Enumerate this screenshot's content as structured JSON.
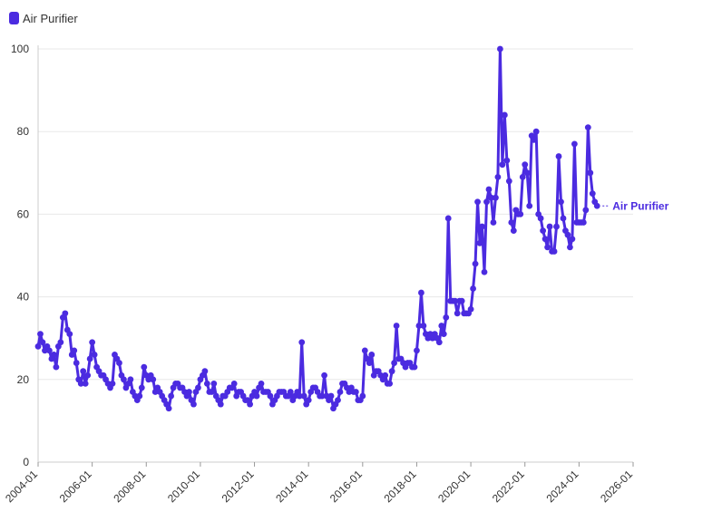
{
  "legend": {
    "label": "Air Purifier",
    "color": "#4b2be0"
  },
  "chart_data": {
    "type": "line",
    "title": "",
    "xlabel": "",
    "ylabel": "",
    "ylim": [
      0,
      100
    ],
    "yticks": [
      0,
      20,
      40,
      60,
      80,
      100
    ],
    "xlim": [
      "2004-01",
      "2026-01"
    ],
    "xticks": [
      "2004-01",
      "2006-01",
      "2008-01",
      "2010-01",
      "2012-01",
      "2014-01",
      "2016-01",
      "2018-01",
      "2020-01",
      "2022-01",
      "2024-01",
      "2026-01"
    ],
    "grid": true,
    "legend_position": "top-left",
    "series": [
      {
        "name": "Air Purifier",
        "color": "#4b2be0",
        "end_label": "Air Purifier",
        "x_start": "2004-01",
        "step": "month",
        "values": [
          28,
          31,
          29,
          27,
          28,
          27,
          25,
          26,
          23,
          28,
          29,
          35,
          36,
          32,
          31,
          26,
          27,
          24,
          20,
          19,
          22,
          19,
          21,
          25,
          29,
          26,
          23,
          22,
          21,
          21,
          20,
          19,
          18,
          19,
          26,
          25,
          24,
          21,
          20,
          18,
          19,
          20,
          17,
          16,
          15,
          16,
          18,
          23,
          21,
          20,
          21,
          20,
          17,
          18,
          17,
          16,
          15,
          14,
          13,
          16,
          18,
          19,
          19,
          18,
          18,
          17,
          16,
          17,
          15,
          14,
          17,
          18,
          20,
          21,
          22,
          19,
          17,
          17,
          19,
          16,
          15,
          14,
          16,
          16,
          17,
          18,
          18,
          19,
          16,
          17,
          17,
          16,
          15,
          15,
          14,
          16,
          17,
          16,
          18,
          19,
          17,
          17,
          17,
          16,
          14,
          15,
          16,
          17,
          17,
          17,
          16,
          16,
          17,
          15,
          16,
          17,
          16,
          29,
          16,
          14,
          15,
          17,
          18,
          18,
          17,
          16,
          16,
          21,
          16,
          15,
          16,
          13,
          14,
          15,
          17,
          19,
          19,
          18,
          17,
          18,
          17,
          17,
          15,
          15,
          16,
          27,
          25,
          24,
          26,
          21,
          22,
          22,
          21,
          20,
          21,
          19,
          19,
          22,
          24,
          33,
          25,
          25,
          24,
          23,
          24,
          24,
          23,
          23,
          27,
          33,
          41,
          33,
          31,
          30,
          31,
          30,
          31,
          30,
          29,
          33,
          31,
          35,
          59,
          39,
          39,
          39,
          36,
          39,
          39,
          36,
          36,
          36,
          37,
          42,
          48,
          63,
          53,
          57,
          46,
          63,
          66,
          64,
          58,
          64,
          69,
          100,
          72,
          84,
          73,
          68,
          58,
          56,
          61,
          60,
          60,
          69,
          72,
          70,
          62,
          79,
          78,
          80,
          60,
          59,
          56,
          54,
          52,
          57,
          51,
          51,
          57,
          74,
          63,
          59,
          56,
          55,
          52,
          54,
          77,
          58,
          58,
          58,
          58,
          61,
          81,
          70,
          65,
          63,
          62
        ]
      }
    ]
  }
}
